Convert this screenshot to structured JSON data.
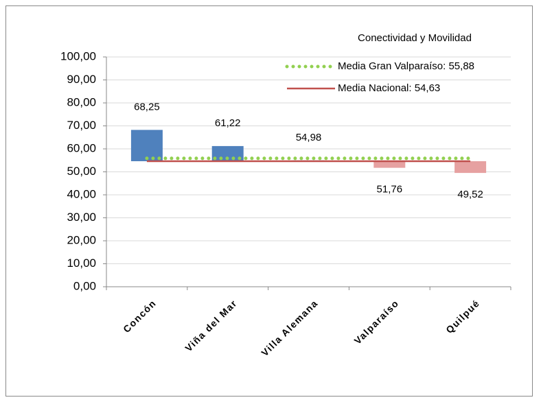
{
  "chart_data": {
    "type": "floating-bar",
    "legend_title": "Conectividad y Movilidad",
    "categories": [
      "Concón",
      "Viña del Mar",
      "Villa Alemana",
      "Valparaíso",
      "Quilpué"
    ],
    "values": [
      68.25,
      61.22,
      54.98,
      51.76,
      49.52
    ],
    "value_labels": [
      "68,25",
      "61,22",
      "54,98",
      "51,76",
      "49,52"
    ],
    "colors": {
      "above": "#4f81bd",
      "below": "#e6a1a1"
    },
    "reference_lines": [
      {
        "name": "Media Gran Valparaíso: 55,88",
        "value": 55.88,
        "color": "#92d050",
        "style": "dotted"
      },
      {
        "name": "Media Nacional: 54,63",
        "value": 54.63,
        "color": "#c0504d",
        "style": "solid"
      }
    ],
    "base_line": 1,
    "ylim": [
      0,
      100
    ],
    "yticks": [
      {
        "value": 0,
        "label": "0,00"
      },
      {
        "value": 10,
        "label": "10,00"
      },
      {
        "value": 20,
        "label": "20,00"
      },
      {
        "value": 30,
        "label": "30,00"
      },
      {
        "value": 40,
        "label": "40,00"
      },
      {
        "value": 50,
        "label": "50,00"
      },
      {
        "value": 60,
        "label": "60,00"
      },
      {
        "value": 70,
        "label": "70,00"
      },
      {
        "value": 80,
        "label": "80,00"
      },
      {
        "value": 90,
        "label": "90,00"
      },
      {
        "value": 100,
        "label": "100,00"
      }
    ],
    "grid": true
  }
}
